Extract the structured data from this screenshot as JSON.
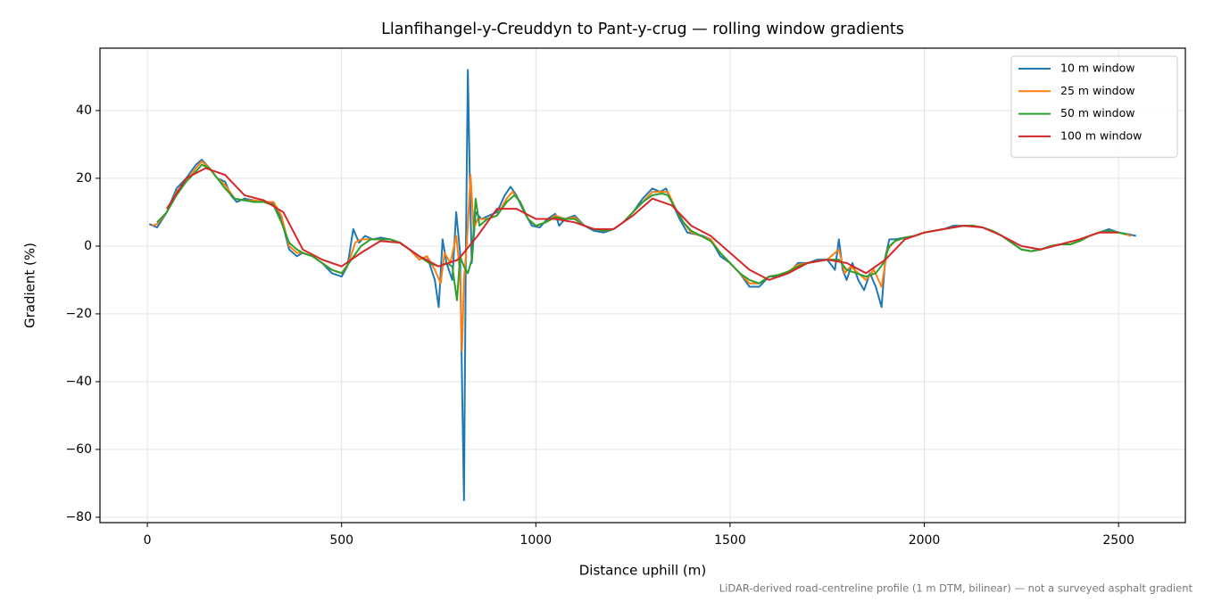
{
  "chart_data": {
    "type": "line",
    "title": "Llanfihangel-y-Creuddyn to Pant-y-crug — rolling window gradients",
    "x_label": "Distance uphill (m)",
    "y_label": "Gradient (%)",
    "note": "LiDAR-derived road-centreline profile (1 m DTM, bilinear) — not a surveyed asphalt gradient",
    "xlim": [
      -122,
      2672
    ],
    "ylim": [
      -81.6,
      58.4
    ],
    "xticks": [
      0,
      500,
      1000,
      1500,
      2000,
      2500
    ],
    "yticks": [
      {
        "value": -80,
        "label": "−80"
      },
      {
        "value": -60,
        "label": "−60"
      },
      {
        "value": -40,
        "label": "−40"
      },
      {
        "value": -20,
        "label": "−20"
      },
      0,
      20,
      40
    ],
    "grid": true,
    "legend": "upper right",
    "series": [
      {
        "name": "10 m window",
        "color": "#1f77b4",
        "x": [
          5,
          25,
          50,
          75,
          100,
          125,
          140,
          160,
          180,
          200,
          215,
          230,
          250,
          275,
          300,
          325,
          345,
          365,
          385,
          400,
          425,
          450,
          475,
          500,
          515,
          530,
          545,
          560,
          580,
          600,
          625,
          650,
          675,
          700,
          720,
          740,
          750,
          760,
          770,
          785,
          795,
          805,
          810,
          815,
          820,
          825,
          830,
          835,
          845,
          860,
          880,
          900,
          920,
          935,
          950,
          970,
          990,
          1010,
          1030,
          1050,
          1060,
          1075,
          1100,
          1125,
          1150,
          1175,
          1200,
          1225,
          1250,
          1275,
          1300,
          1320,
          1335,
          1350,
          1370,
          1390,
          1410,
          1430,
          1450,
          1475,
          1500,
          1525,
          1550,
          1575,
          1600,
          1625,
          1650,
          1675,
          1700,
          1725,
          1750,
          1770,
          1780,
          1790,
          1800,
          1815,
          1830,
          1845,
          1860,
          1875,
          1890,
          1900,
          1910,
          1925,
          1950,
          1975,
          2000,
          2025,
          2050,
          2075,
          2100,
          2125,
          2150,
          2175,
          2200,
          2225,
          2250,
          2275,
          2300,
          2325,
          2350,
          2375,
          2400,
          2425,
          2450,
          2475,
          2500,
          2525,
          2545
        ],
        "values": [
          6.5,
          5.5,
          10,
          17,
          20,
          24,
          25.5,
          23,
          20,
          19,
          15,
          13,
          14,
          13.5,
          13,
          12.5,
          8,
          -1,
          -3,
          -2,
          -3,
          -5,
          -8,
          -9,
          -6,
          5,
          1,
          3,
          2,
          2.5,
          2,
          1,
          -1,
          -4,
          -3,
          -10,
          -18,
          2,
          -5,
          -10,
          10,
          -2,
          -40,
          -75,
          0,
          52,
          20,
          -5,
          10,
          8,
          9,
          10,
          15,
          17.5,
          15,
          10,
          6,
          5.5,
          8,
          9.5,
          6,
          8,
          9,
          6,
          4.5,
          4,
          5,
          7,
          10,
          14,
          17,
          16,
          17,
          13,
          8,
          4,
          3.5,
          3,
          2,
          -3,
          -5,
          -8,
          -12,
          -12,
          -9,
          -9,
          -8,
          -5,
          -5,
          -4,
          -4,
          -7,
          2,
          -7,
          -10,
          -5,
          -10,
          -13,
          -8,
          -12,
          -18,
          -3,
          2,
          2,
          2.5,
          3,
          4,
          4.5,
          5,
          6,
          6,
          6,
          5.5,
          4.5,
          3,
          1,
          -1,
          -1.5,
          -1,
          0,
          0.5,
          0.5,
          1.5,
          3,
          4,
          5,
          4,
          3.5,
          3
        ]
      },
      {
        "name": "25 m window",
        "color": "#ff7f0e",
        "x": [
          12,
          25,
          50,
          75,
          100,
          125,
          140,
          160,
          180,
          200,
          225,
          250,
          275,
          300,
          325,
          345,
          365,
          385,
          400,
          425,
          450,
          475,
          500,
          515,
          535,
          550,
          575,
          600,
          625,
          650,
          675,
          700,
          720,
          740,
          755,
          765,
          780,
          795,
          805,
          810,
          815,
          822,
          832,
          840,
          850,
          875,
          900,
          925,
          940,
          960,
          980,
          1000,
          1025,
          1050,
          1075,
          1100,
          1125,
          1150,
          1175,
          1200,
          1225,
          1250,
          1275,
          1300,
          1325,
          1340,
          1360,
          1380,
          1400,
          1425,
          1450,
          1475,
          1500,
          1525,
          1550,
          1575,
          1600,
          1625,
          1650,
          1675,
          1700,
          1725,
          1750,
          1780,
          1795,
          1810,
          1830,
          1850,
          1870,
          1890,
          1905,
          1925,
          1950,
          1975,
          2000,
          2025,
          2050,
          2075,
          2100,
          2125,
          2150,
          2175,
          2200,
          2225,
          2250,
          2275,
          2300,
          2325,
          2350,
          2375,
          2400,
          2425,
          2450,
          2475,
          2500,
          2532
        ],
        "values": [
          6,
          6.5,
          10,
          16,
          19,
          23,
          25,
          23,
          20,
          18,
          14,
          13.5,
          13.5,
          13,
          13,
          9,
          0,
          -2,
          -2,
          -3,
          -5,
          -7,
          -8,
          -6,
          1,
          2,
          2,
          2,
          2,
          1,
          -1,
          -4,
          -3,
          -7,
          -11,
          -2,
          -5,
          3,
          -8,
          -31,
          -10,
          0,
          21,
          5,
          8,
          8,
          9,
          14,
          16,
          13,
          8,
          6,
          7,
          9,
          8,
          8.5,
          6,
          5,
          4.5,
          5,
          7,
          10,
          13,
          16,
          16,
          16,
          11,
          7,
          4,
          3,
          2,
          -2,
          -5,
          -8,
          -11,
          -11,
          -9,
          -8.5,
          -7.5,
          -5.5,
          -5,
          -4.5,
          -4,
          -1,
          -8,
          -6,
          -8,
          -10,
          -7,
          -12,
          -1,
          1.5,
          2.5,
          3,
          4,
          4.5,
          5,
          5.5,
          6,
          6,
          5.5,
          4.5,
          3,
          1,
          -1,
          -1.5,
          -1,
          0,
          0.5,
          0.5,
          1.5,
          3,
          4,
          4.5,
          4,
          3
        ]
      },
      {
        "name": "50 m window",
        "color": "#2ca02c",
        "x": [
          25,
          50,
          75,
          100,
          125,
          140,
          160,
          180,
          200,
          225,
          250,
          275,
          300,
          325,
          345,
          365,
          385,
          400,
          425,
          450,
          475,
          500,
          525,
          550,
          575,
          600,
          625,
          650,
          675,
          700,
          725,
          750,
          770,
          785,
          797,
          805,
          815,
          825,
          835,
          845,
          855,
          875,
          900,
          925,
          945,
          960,
          980,
          1000,
          1025,
          1050,
          1075,
          1100,
          1125,
          1150,
          1175,
          1200,
          1225,
          1250,
          1275,
          1300,
          1325,
          1340,
          1360,
          1380,
          1400,
          1425,
          1450,
          1475,
          1500,
          1525,
          1550,
          1575,
          1600,
          1625,
          1650,
          1675,
          1700,
          1725,
          1750,
          1780,
          1800,
          1825,
          1850,
          1875,
          1895,
          1910,
          1925,
          1950,
          1975,
          2000,
          2025,
          2050,
          2075,
          2100,
          2125,
          2150,
          2175,
          2200,
          2225,
          2250,
          2275,
          2300,
          2325,
          2350,
          2375,
          2400,
          2425,
          2450,
          2475,
          2500,
          2520
        ],
        "values": [
          7,
          10,
          15,
          19,
          22,
          24,
          23,
          20,
          17,
          14,
          13.5,
          13,
          13,
          12,
          7,
          1,
          -1,
          -2,
          -3,
          -5,
          -7,
          -8,
          -4,
          0,
          2,
          2,
          2,
          1,
          -1,
          -3,
          -5,
          -6,
          -5,
          -6,
          -16,
          -3,
          -6,
          -8,
          -4,
          14,
          6,
          8,
          9,
          13,
          15,
          13,
          8,
          6,
          7,
          8.5,
          8,
          8,
          6,
          5,
          4.5,
          5,
          7,
          10,
          13,
          15,
          15.5,
          15,
          11,
          7,
          4.5,
          3,
          1.5,
          -2,
          -5,
          -8,
          -10,
          -11,
          -9,
          -8.5,
          -7.5,
          -6,
          -5,
          -4.5,
          -4,
          -4,
          -7,
          -8,
          -9,
          -8,
          -5,
          0,
          1.5,
          2.5,
          3,
          4,
          4.5,
          5,
          5.5,
          6,
          6,
          5.5,
          4.5,
          3,
          1,
          -1,
          -1.5,
          -1,
          0,
          0.5,
          0.5,
          1.5,
          3,
          4,
          4.5,
          4,
          3.5
        ]
      },
      {
        "name": "100 m window",
        "color": "#d62728",
        "x": [
          50,
          100,
          150,
          200,
          250,
          300,
          350,
          400,
          450,
          500,
          550,
          600,
          650,
          700,
          750,
          800,
          850,
          900,
          950,
          1000,
          1050,
          1100,
          1150,
          1200,
          1250,
          1300,
          1350,
          1400,
          1450,
          1500,
          1550,
          1600,
          1650,
          1700,
          1750,
          1800,
          1850,
          1900,
          1950,
          2000,
          2050,
          2100,
          2150,
          2200,
          2250,
          2300,
          2350,
          2400,
          2450,
          2500
        ],
        "values": [
          11,
          20,
          23,
          21,
          15,
          13.5,
          10,
          -1,
          -4,
          -6,
          -2,
          1.5,
          1,
          -3,
          -6,
          -4,
          3,
          11,
          11,
          8,
          8,
          7,
          5,
          5,
          9,
          14,
          12,
          6,
          3,
          -2,
          -7,
          -10,
          -8,
          -5,
          -4,
          -5,
          -8,
          -4,
          2,
          4,
          5,
          6,
          5.5,
          3,
          0,
          -1,
          0.5,
          2,
          4,
          4
        ]
      }
    ]
  }
}
